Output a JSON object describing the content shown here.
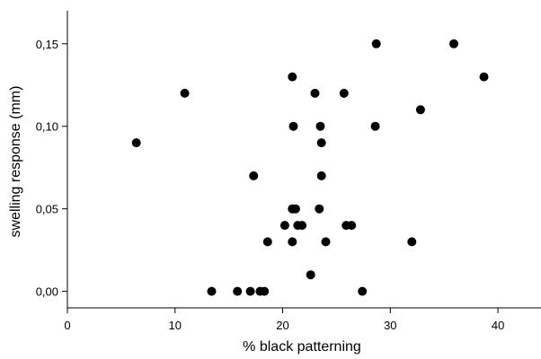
{
  "chart_data": {
    "type": "scatter",
    "title": "",
    "xlabel": "% black patterning",
    "ylabel": "swelling response (mm)",
    "xlim": [
      0,
      44
    ],
    "ylim": [
      -0.01,
      0.17
    ],
    "x_ticks": [
      0,
      10,
      20,
      30,
      40
    ],
    "x_tick_labels": [
      "0",
      "10",
      "20",
      "30",
      "40"
    ],
    "y_ticks": [
      0.0,
      0.05,
      0.1,
      0.15
    ],
    "y_tick_labels": [
      "0,00",
      "0,05",
      "0,10",
      "0,15"
    ],
    "grid": false,
    "legend": "none",
    "marker_color": "#000000",
    "points": [
      {
        "x": 6.4,
        "y": 0.09
      },
      {
        "x": 10.9,
        "y": 0.12
      },
      {
        "x": 13.4,
        "y": 0.0
      },
      {
        "x": 15.8,
        "y": 0.0
      },
      {
        "x": 17.0,
        "y": 0.0
      },
      {
        "x": 17.3,
        "y": 0.07
      },
      {
        "x": 17.9,
        "y": 0.0
      },
      {
        "x": 18.3,
        "y": 0.0
      },
      {
        "x": 18.6,
        "y": 0.03
      },
      {
        "x": 20.2,
        "y": 0.04
      },
      {
        "x": 20.9,
        "y": 0.13
      },
      {
        "x": 21.0,
        "y": 0.1
      },
      {
        "x": 20.9,
        "y": 0.05
      },
      {
        "x": 21.2,
        "y": 0.05
      },
      {
        "x": 20.9,
        "y": 0.03
      },
      {
        "x": 21.4,
        "y": 0.04
      },
      {
        "x": 21.8,
        "y": 0.04
      },
      {
        "x": 22.6,
        "y": 0.01
      },
      {
        "x": 23.0,
        "y": 0.12
      },
      {
        "x": 23.4,
        "y": 0.05
      },
      {
        "x": 23.5,
        "y": 0.1
      },
      {
        "x": 23.6,
        "y": 0.09
      },
      {
        "x": 23.6,
        "y": 0.07
      },
      {
        "x": 24.0,
        "y": 0.03
      },
      {
        "x": 25.7,
        "y": 0.12
      },
      {
        "x": 25.9,
        "y": 0.04
      },
      {
        "x": 26.4,
        "y": 0.04
      },
      {
        "x": 27.4,
        "y": 0.0
      },
      {
        "x": 28.6,
        "y": 0.1
      },
      {
        "x": 28.7,
        "y": 0.15
      },
      {
        "x": 32.0,
        "y": 0.03
      },
      {
        "x": 32.8,
        "y": 0.11
      },
      {
        "x": 35.9,
        "y": 0.15
      },
      {
        "x": 38.7,
        "y": 0.13
      }
    ]
  }
}
